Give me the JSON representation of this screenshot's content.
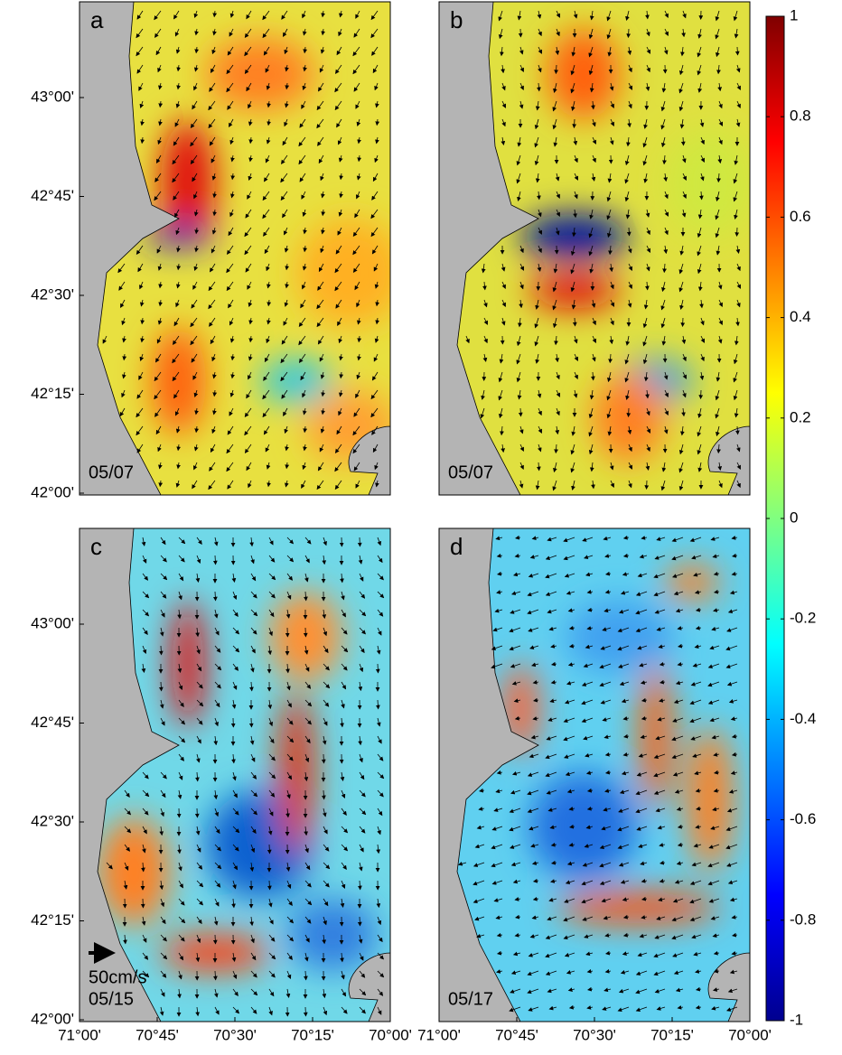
{
  "panels": [
    {
      "label": "a",
      "date": "05/07"
    },
    {
      "label": "b",
      "date": "05/07"
    },
    {
      "label": "c",
      "scale": "50cm/s",
      "date": "05/15"
    },
    {
      "label": "d",
      "date": "05/17"
    }
  ],
  "y_axis": {
    "ticks": [
      "43°00'",
      "42°45'",
      "42°30'",
      "42°15'",
      "42°00'"
    ]
  },
  "x_axis": {
    "ticks": [
      "71°00'",
      "70°45'",
      "70°30'",
      "70°15'",
      "70°00'"
    ]
  },
  "colorbar": {
    "lim": [
      -1,
      1
    ],
    "ticks": [
      1,
      0.8,
      0.6,
      0.4,
      0.2,
      0,
      -0.2,
      -0.4,
      -0.6,
      -0.8,
      -1
    ]
  }
}
